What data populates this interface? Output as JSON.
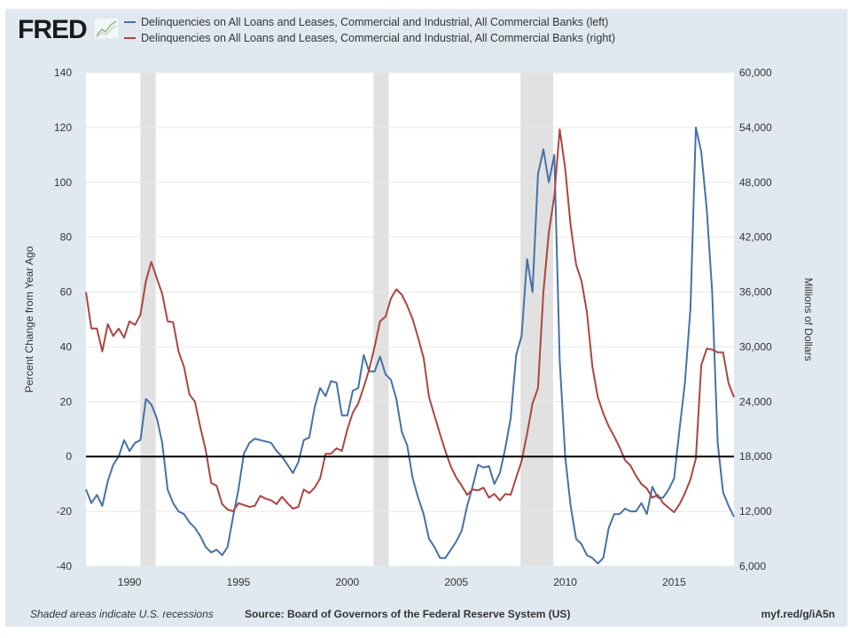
{
  "header": {
    "logo": "FRED",
    "legend": [
      {
        "label": "Delinquencies on All Loans and Leases, Commercial and Industrial, All Commercial Banks (left)",
        "color": "#4572a7"
      },
      {
        "label": "Delinquencies on All Loans and Leases, Commercial and Industrial, All Commercial Banks (right)",
        "color": "#aa4643"
      }
    ]
  },
  "footer": {
    "note": "Shaded areas indicate U.S. recessions",
    "source": "Source: Board of Governors of the Federal Reserve System (US)",
    "link": "myf.red/g/iA5n"
  },
  "chart_data": {
    "type": "line",
    "ylabel_left": "Percent Change from Year Ago",
    "ylabel_right": "Millions of Dollars",
    "xlim": [
      1988.0,
      2017.75
    ],
    "ylim_left": [
      -40,
      140
    ],
    "ylim_right": [
      6000,
      60000
    ],
    "x_ticks": [
      "1990",
      "1995",
      "2000",
      "2005",
      "2010",
      "2015"
    ],
    "y_ticks_left": [
      "-40",
      "-20",
      "0",
      "20",
      "40",
      "60",
      "80",
      "100",
      "120",
      "140"
    ],
    "y_ticks_right": [
      "6,000",
      "12,000",
      "18,000",
      "24,000",
      "30,000",
      "36,000",
      "42,000",
      "48,000",
      "54,000",
      "60,000"
    ],
    "recessions": [
      [
        1990.5,
        1991.2
      ],
      [
        2001.2,
        2001.9
      ],
      [
        2007.95,
        2009.45
      ]
    ],
    "zero_line": 0,
    "series": [
      {
        "name": "left",
        "axis": "left",
        "color": "#4572a7",
        "start": 1988.0,
        "step": 0.25,
        "values": [
          -12,
          -17,
          -14,
          -18,
          -9,
          -3,
          0,
          6,
          2,
          5,
          6,
          21,
          19,
          14,
          5,
          -12,
          -17,
          -20,
          -21,
          -24,
          -26,
          -29,
          -33,
          -35,
          -34,
          -36,
          -33,
          -22,
          -12,
          1,
          5,
          6.5,
          6,
          5.5,
          5,
          2,
          0,
          -3,
          -6,
          -2,
          6,
          7,
          18,
          25,
          22,
          27.5,
          27,
          15,
          15,
          24,
          25,
          37,
          31,
          31,
          36.5,
          30,
          28,
          21,
          9,
          4,
          -8,
          -15,
          -21,
          -30,
          -33,
          -37,
          -37,
          -34,
          -31,
          -27,
          -18,
          -11,
          -3,
          -4,
          -3.5,
          -10,
          -6,
          3,
          14,
          37,
          44,
          72,
          60,
          103,
          112,
          100,
          110,
          35,
          0,
          -18,
          -30,
          -32,
          -36,
          -37,
          -39,
          -37,
          -26,
          -21,
          -21,
          -19,
          -20,
          -20,
          -17,
          -21,
          -11,
          -15,
          -15,
          -12,
          -8,
          10,
          27,
          54,
          120,
          111,
          90,
          60,
          5,
          -13,
          -18,
          -22
        ]
      },
      {
        "name": "right",
        "axis": "right",
        "color": "#aa4643",
        "start": 1988.0,
        "step": 0.25,
        "values": [
          36000,
          32000,
          32000,
          29500,
          32500,
          31200,
          32000,
          31000,
          32800,
          32400,
          33500,
          37200,
          39300,
          37500,
          35800,
          32800,
          32700,
          29500,
          27800,
          24800,
          24000,
          21200,
          18700,
          15100,
          14800,
          12800,
          12200,
          12000,
          12900,
          12700,
          12500,
          12600,
          13700,
          13400,
          13200,
          12800,
          13600,
          12900,
          12300,
          12500,
          14400,
          14000,
          14600,
          15600,
          18300,
          18300,
          18900,
          18600,
          21000,
          22800,
          23800,
          25600,
          27500,
          30000,
          32800,
          33300,
          35300,
          36300,
          35700,
          34500,
          33000,
          31000,
          28800,
          24500,
          22500,
          20500,
          18600,
          16900,
          15700,
          14800,
          13800,
          14400,
          14300,
          14600,
          13500,
          13900,
          13200,
          13900,
          13800,
          15700,
          17500,
          20500,
          23800,
          25500,
          36000,
          42500,
          46500,
          53800,
          49500,
          43300,
          39000,
          37200,
          33800,
          27800,
          24500,
          22700,
          21300,
          20200,
          19000,
          17600,
          17000,
          15900,
          15000,
          14500,
          13500,
          13800,
          12900,
          12400,
          11900,
          12800,
          14000,
          15500,
          17800,
          28000,
          29800,
          29700,
          29400,
          29400,
          26000,
          24500
        ]
      }
    ]
  }
}
